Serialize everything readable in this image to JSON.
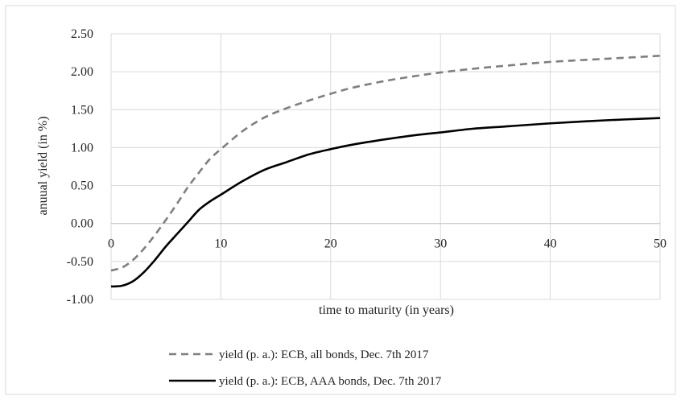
{
  "chart_data": {
    "type": "line",
    "xlabel": "time  to maturity (in years)",
    "ylabel": "anuual yield (in %)",
    "xlim": [
      0,
      50
    ],
    "ylim": [
      -1.0,
      2.5
    ],
    "x_ticks": [
      "0",
      "10",
      "20",
      "30",
      "40",
      "50"
    ],
    "y_ticks": [
      "2.50",
      "2.00",
      "1.50",
      "1.00",
      "0.50",
      "0.00",
      "-0.50",
      "-1.00"
    ],
    "grid": true,
    "legend_position": "bottom",
    "series": [
      {
        "name": "yield (p. a.): ECB, all bonds, Dec. 7th 2017",
        "style": "dashed",
        "color": "#7f7f7f",
        "points": [
          [
            0,
            -0.62
          ],
          [
            1,
            -0.58
          ],
          [
            2,
            -0.48
          ],
          [
            3,
            -0.33
          ],
          [
            4,
            -0.15
          ],
          [
            5,
            0.05
          ],
          [
            6,
            0.26
          ],
          [
            7,
            0.48
          ],
          [
            8,
            0.67
          ],
          [
            9,
            0.85
          ],
          [
            10,
            0.98
          ],
          [
            12,
            1.22
          ],
          [
            14,
            1.4
          ],
          [
            16,
            1.52
          ],
          [
            18,
            1.62
          ],
          [
            20,
            1.71
          ],
          [
            22,
            1.79
          ],
          [
            25,
            1.88
          ],
          [
            28,
            1.95
          ],
          [
            30,
            1.99
          ],
          [
            33,
            2.04
          ],
          [
            36,
            2.08
          ],
          [
            40,
            2.13
          ],
          [
            45,
            2.17
          ],
          [
            50,
            2.21
          ]
        ]
      },
      {
        "name": "yield (p. a.): ECB, AAA bonds, Dec. 7th 2017",
        "style": "solid",
        "color": "#000000",
        "points": [
          [
            0,
            -0.83
          ],
          [
            1,
            -0.82
          ],
          [
            2,
            -0.76
          ],
          [
            3,
            -0.64
          ],
          [
            4,
            -0.48
          ],
          [
            5,
            -0.3
          ],
          [
            6,
            -0.14
          ],
          [
            7,
            0.02
          ],
          [
            8,
            0.18
          ],
          [
            9,
            0.29
          ],
          [
            10,
            0.38
          ],
          [
            12,
            0.56
          ],
          [
            14,
            0.71
          ],
          [
            16,
            0.81
          ],
          [
            18,
            0.91
          ],
          [
            20,
            0.98
          ],
          [
            22,
            1.04
          ],
          [
            25,
            1.11
          ],
          [
            28,
            1.17
          ],
          [
            30,
            1.2
          ],
          [
            33,
            1.25
          ],
          [
            36,
            1.28
          ],
          [
            40,
            1.32
          ],
          [
            45,
            1.36
          ],
          [
            50,
            1.39
          ]
        ]
      }
    ]
  }
}
